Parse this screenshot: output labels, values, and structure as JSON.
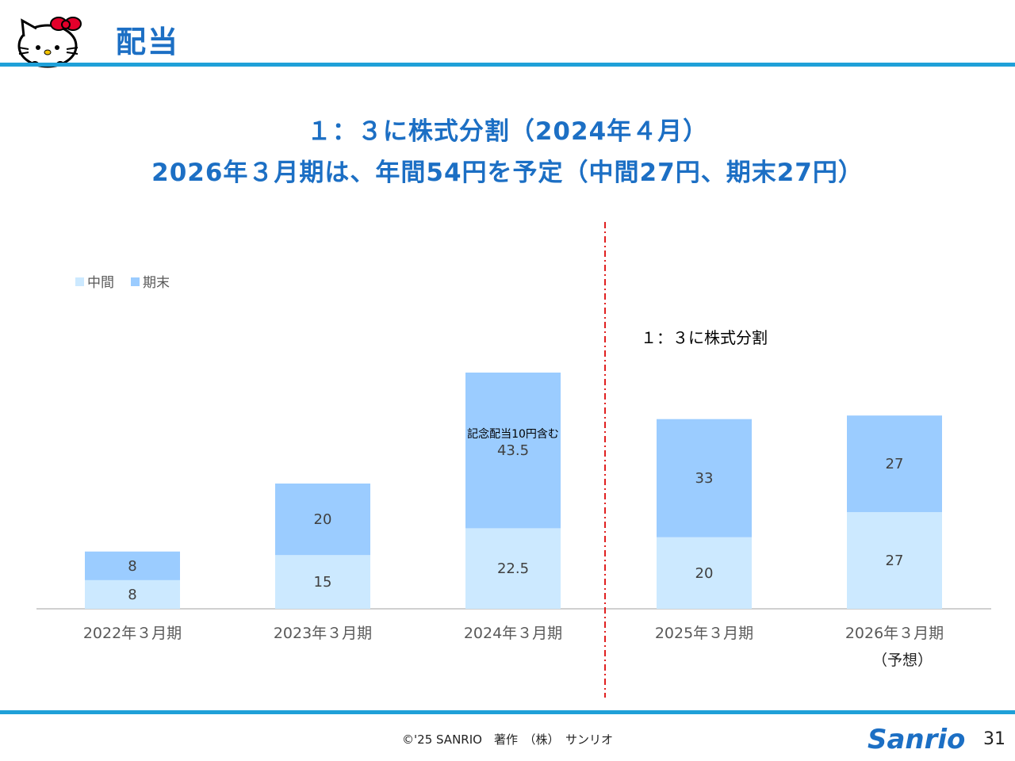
{
  "header": {
    "title": "配当"
  },
  "headline": {
    "line1": "１：３に株式分割（2024年４月）",
    "line2": "2026年３月期は、年間54円を予定（中間27円、期末27円）"
  },
  "chart_data": {
    "type": "bar",
    "stacked": true,
    "categories": [
      "2022年３月期",
      "2023年３月期",
      "2024年３月期",
      "2025年３月期",
      "2026年３月期"
    ],
    "category_sublabels": [
      "",
      "",
      "",
      "",
      "（予想）"
    ],
    "series": [
      {
        "name": "中間",
        "values": [
          8,
          15,
          22.5,
          20,
          27
        ],
        "color": "#cce9ff"
      },
      {
        "name": "期末",
        "values": [
          8,
          20,
          43.5,
          33,
          27
        ],
        "color": "#9bccff"
      }
    ],
    "data_labels": [
      [
        "8",
        "15",
        "22.5",
        "20",
        "27"
      ],
      [
        "8",
        "20",
        "43.5",
        "33",
        "27"
      ]
    ],
    "annotations": [
      {
        "text": "記念配当10円含む",
        "category_index": 2
      },
      {
        "text": "１：３に株式分割",
        "category_index": 3
      }
    ],
    "legend_position": "top-left",
    "divider_after_category": 2,
    "divider_color": "#e02020",
    "ylim": [
      0,
      70
    ],
    "grid": false
  },
  "footer": {
    "copyright": "©'25 SANRIO　著作　（株）　サンリオ",
    "page_number": "31",
    "brand": "Sanrio"
  },
  "colors": {
    "accent": "#1c6fc4",
    "rule": "#1fa0d8"
  }
}
